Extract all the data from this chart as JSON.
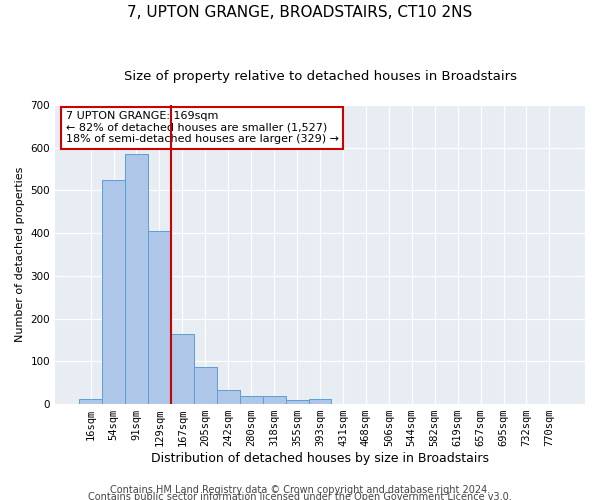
{
  "title": "7, UPTON GRANGE, BROADSTAIRS, CT10 2NS",
  "subtitle": "Size of property relative to detached houses in Broadstairs",
  "xlabel": "Distribution of detached houses by size in Broadstairs",
  "ylabel": "Number of detached properties",
  "bar_labels": [
    "16sqm",
    "54sqm",
    "91sqm",
    "129sqm",
    "167sqm",
    "205sqm",
    "242sqm",
    "280sqm",
    "318sqm",
    "355sqm",
    "393sqm",
    "431sqm",
    "468sqm",
    "506sqm",
    "544sqm",
    "582sqm",
    "619sqm",
    "657sqm",
    "695sqm",
    "732sqm",
    "770sqm"
  ],
  "bar_heights": [
    13,
    525,
    585,
    405,
    165,
    87,
    32,
    20,
    20,
    10,
    12,
    0,
    0,
    0,
    0,
    0,
    0,
    0,
    0,
    0,
    0
  ],
  "bar_color": "#aec6e8",
  "bar_edge_color": "#5a9fd4",
  "vline_index": 4,
  "vline_color": "#cc0000",
  "annotation_text": "7 UPTON GRANGE: 169sqm\n← 82% of detached houses are smaller (1,527)\n18% of semi-detached houses are larger (329) →",
  "annotation_box_color": "#ffffff",
  "annotation_box_edge": "#cc0000",
  "ylim": [
    0,
    700
  ],
  "yticks": [
    0,
    100,
    200,
    300,
    400,
    500,
    600,
    700
  ],
  "background_color": "#e8edf4",
  "grid_color": "#ffffff",
  "footer1": "Contains HM Land Registry data © Crown copyright and database right 2024.",
  "footer2": "Contains public sector information licensed under the Open Government Licence v3.0.",
  "title_fontsize": 11,
  "subtitle_fontsize": 9.5,
  "xlabel_fontsize": 9,
  "ylabel_fontsize": 8,
  "footer_fontsize": 7,
  "tick_fontsize": 7.5,
  "annot_fontsize": 8
}
